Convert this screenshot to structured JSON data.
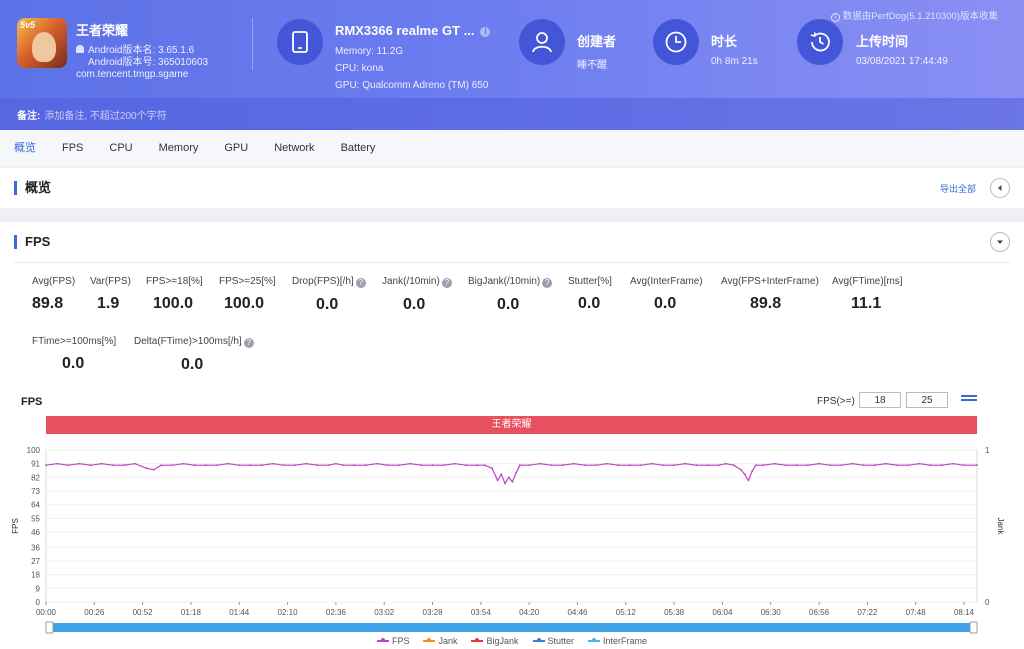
{
  "header": {
    "app": {
      "name": "王者荣耀",
      "icon_badge": "5v5",
      "version_name": "Android版本名: 3.65.1.6",
      "version_code": "Android版本号: 365010603",
      "package": "com.tencent.tmgp.sgame"
    },
    "device": {
      "name": "RMX3366 realme GT ...",
      "memory": "Memory: 11.2G",
      "cpu": "CPU: kona",
      "gpu": "GPU: Qualcomm Adreno (TM) 650",
      "icon": "phone-icon"
    },
    "creator": {
      "title": "创建者",
      "value": "睡不醒",
      "icon": "user-icon"
    },
    "duration": {
      "title": "时长",
      "value": "0h 8m 21s",
      "icon": "clock-icon"
    },
    "upload": {
      "title": "上传时间",
      "value": "03/08/2021 17:44:49",
      "icon": "history-icon"
    },
    "source_note": "数据由PerfDog(5.1.210300)版本收集",
    "remark": {
      "label": "备注:",
      "placeholder": "添加备注, 不超过200个字符"
    }
  },
  "tabs": [
    "概览",
    "FPS",
    "CPU",
    "Memory",
    "GPU",
    "Network",
    "Battery"
  ],
  "active_tab": "概览",
  "overview": {
    "title": "概览",
    "export_label": "导出全部"
  },
  "fps_section": {
    "title": "FPS",
    "metrics_row1": [
      {
        "label": "Avg(FPS)",
        "value": "89.8",
        "help": false
      },
      {
        "label": "Var(FPS)",
        "value": "1.9",
        "help": false
      },
      {
        "label": "FPS>=18[%]",
        "value": "100.0",
        "help": false
      },
      {
        "label": "FPS>=25[%]",
        "value": "100.0",
        "help": false
      },
      {
        "label": "Drop(FPS)[/h]",
        "value": "0.0",
        "help": true
      },
      {
        "label": "Jank(/10min)",
        "value": "0.0",
        "help": true
      },
      {
        "label": "BigJank(/10min)",
        "value": "0.0",
        "help": true
      },
      {
        "label": "Stutter[%]",
        "value": "0.0",
        "help": false
      },
      {
        "label": "Avg(InterFrame)",
        "value": "0.0",
        "help": false
      },
      {
        "label": "Avg(FPS+InterFrame)",
        "value": "89.8",
        "help": false
      },
      {
        "label": "Avg(FTime)[ms]",
        "value": "11.1",
        "help": false
      }
    ],
    "metrics_row2": [
      {
        "label": "FTime>=100ms[%]",
        "value": "0.0",
        "help": false
      },
      {
        "label": "Delta(FTime)>100ms[/h]",
        "value": "0.0",
        "help": true
      }
    ],
    "chart_title": "FPS",
    "threshold_label": "FPS(>=)",
    "threshold_values": [
      "18",
      "25"
    ],
    "scene_label": "王者荣耀"
  },
  "chart_data": {
    "type": "line",
    "title": "FPS",
    "ylabel": "FPS",
    "y2label": "Jank",
    "ylim": [
      0,
      100
    ],
    "y_ticks": [
      0,
      9,
      18,
      27,
      36,
      46,
      55,
      64,
      73,
      82,
      91,
      100
    ],
    "y2_ticks": [
      0,
      1
    ],
    "x_ticks": [
      "00:00",
      "00:26",
      "00:52",
      "01:18",
      "01:44",
      "02:10",
      "02:36",
      "03:02",
      "03:28",
      "03:54",
      "04:20",
      "04:46",
      "05:12",
      "05:38",
      "06:04",
      "06:30",
      "06:56",
      "07:22",
      "07:48",
      "08:14"
    ],
    "x_range_sec": [
      0,
      501
    ],
    "series": [
      {
        "name": "FPS",
        "color": "#c23fc8",
        "points": [
          [
            0,
            90
          ],
          [
            6,
            91
          ],
          [
            12,
            90
          ],
          [
            18,
            91
          ],
          [
            24,
            90
          ],
          [
            30,
            91
          ],
          [
            36,
            90
          ],
          [
            42,
            90
          ],
          [
            48,
            91
          ],
          [
            54,
            88
          ],
          [
            58,
            87
          ],
          [
            62,
            90
          ],
          [
            68,
            90
          ],
          [
            74,
            91
          ],
          [
            80,
            90
          ],
          [
            86,
            90
          ],
          [
            92,
            90
          ],
          [
            98,
            91
          ],
          [
            104,
            90
          ],
          [
            110,
            90
          ],
          [
            116,
            90
          ],
          [
            122,
            91
          ],
          [
            128,
            90
          ],
          [
            134,
            90
          ],
          [
            140,
            91
          ],
          [
            146,
            90
          ],
          [
            152,
            90
          ],
          [
            156,
            91
          ],
          [
            160,
            90
          ],
          [
            166,
            90
          ],
          [
            172,
            90
          ],
          [
            178,
            91
          ],
          [
            184,
            90
          ],
          [
            190,
            90
          ],
          [
            196,
            91
          ],
          [
            202,
            90
          ],
          [
            208,
            90
          ],
          [
            214,
            90
          ],
          [
            220,
            91
          ],
          [
            226,
            90
          ],
          [
            232,
            90
          ],
          [
            236,
            90
          ],
          [
            240,
            88
          ],
          [
            243,
            80
          ],
          [
            245,
            84
          ],
          [
            247,
            78
          ],
          [
            249,
            82
          ],
          [
            251,
            79
          ],
          [
            253,
            85
          ],
          [
            255,
            90
          ],
          [
            260,
            90
          ],
          [
            266,
            91
          ],
          [
            272,
            90
          ],
          [
            278,
            90
          ],
          [
            284,
            91
          ],
          [
            290,
            90
          ],
          [
            296,
            90
          ],
          [
            302,
            91
          ],
          [
            308,
            90
          ],
          [
            314,
            90
          ],
          [
            320,
            90
          ],
          [
            326,
            91
          ],
          [
            332,
            90
          ],
          [
            338,
            90
          ],
          [
            344,
            91
          ],
          [
            350,
            90
          ],
          [
            356,
            90
          ],
          [
            362,
            90
          ],
          [
            366,
            91
          ],
          [
            370,
            90
          ],
          [
            374,
            87
          ],
          [
            376,
            84
          ],
          [
            378,
            80
          ],
          [
            380,
            86
          ],
          [
            382,
            90
          ],
          [
            386,
            90
          ],
          [
            392,
            91
          ],
          [
            398,
            90
          ],
          [
            404,
            90
          ],
          [
            410,
            90
          ],
          [
            416,
            91
          ],
          [
            422,
            90
          ],
          [
            428,
            90
          ],
          [
            434,
            91
          ],
          [
            440,
            90
          ],
          [
            446,
            90
          ],
          [
            452,
            91
          ],
          [
            458,
            90
          ],
          [
            464,
            90
          ],
          [
            470,
            91
          ],
          [
            476,
            90
          ],
          [
            482,
            90
          ],
          [
            488,
            91
          ],
          [
            494,
            90
          ],
          [
            501,
            90
          ]
        ]
      },
      {
        "name": "Jank",
        "color": "#f0902a",
        "points": []
      },
      {
        "name": "BigJank",
        "color": "#e33b3b",
        "points": []
      },
      {
        "name": "Stutter",
        "color": "#3a7fe0",
        "points": []
      },
      {
        "name": "InterFrame",
        "color": "#4fb3e8",
        "points": []
      }
    ],
    "grid": true,
    "legend": "bottom"
  }
}
